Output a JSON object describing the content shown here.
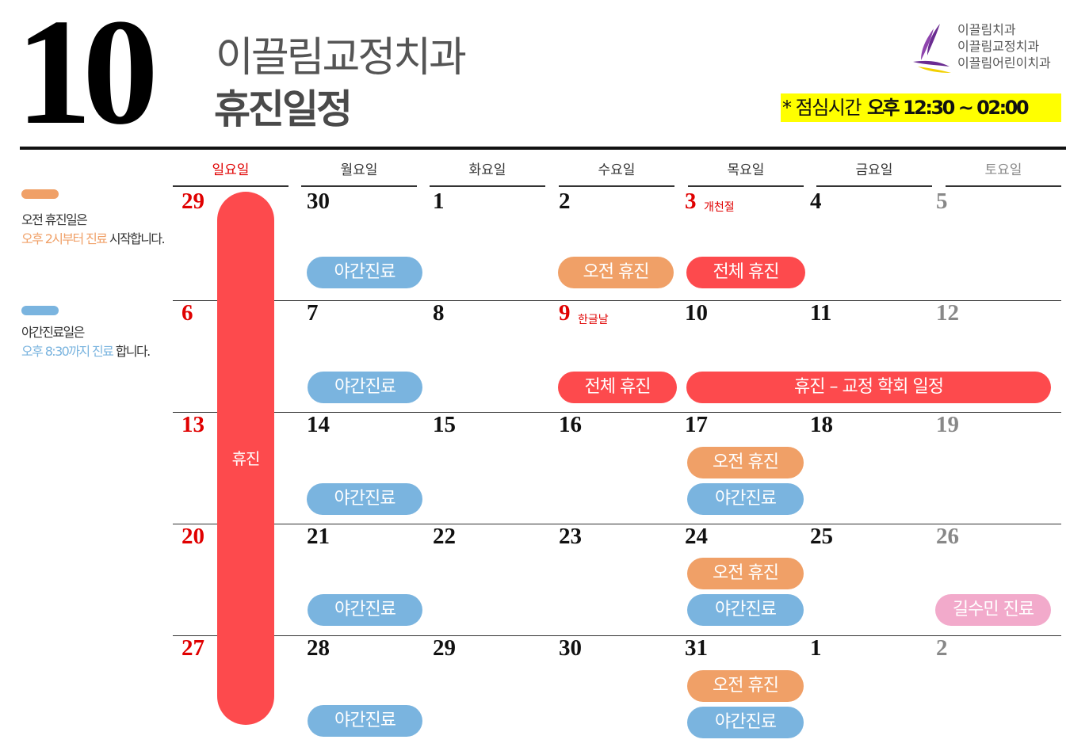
{
  "header": {
    "month": "10",
    "clinic_name": "이끌림교정치과",
    "schedule_title": "휴진일정",
    "logo_names": [
      "이끌림치과",
      "이끌림교정치과",
      "이끌림어린이치과"
    ],
    "lunch_prefix": "* 점심시간",
    "lunch_time": "오후 12:30 ~ 02:00"
  },
  "weekdays": [
    "일요일",
    "월요일",
    "화요일",
    "수요일",
    "목요일",
    "금요일",
    "토요일"
  ],
  "legend": {
    "morning_off": {
      "line1": "오전 휴진일은",
      "highlight": "오후 2시부터 진료",
      "rest": " 시작합니다."
    },
    "night_clinic": {
      "line1": "야간진료일은",
      "highlight": "오후 8:30까지 진료",
      "rest": " 합니다."
    }
  },
  "calendar": {
    "dates": [
      [
        "29",
        "30",
        "1",
        "2",
        "3",
        "4",
        "5"
      ],
      [
        "6",
        "7",
        "8",
        "9",
        "10",
        "11",
        "12"
      ],
      [
        "13",
        "14",
        "15",
        "16",
        "17",
        "18",
        "19"
      ],
      [
        "20",
        "21",
        "22",
        "23",
        "24",
        "25",
        "26"
      ],
      [
        "27",
        "28",
        "29",
        "30",
        "31",
        "1",
        "2"
      ]
    ],
    "holidays": {
      "chuseok_label": "개천절",
      "hangul_label": "한글날"
    },
    "sunday_bar_label": "휴진",
    "events": {
      "night_clinic": "야간진료",
      "morning_off": "오전 휴진",
      "full_off": "전체 휴진",
      "academy_off": "휴진 – 교정 학회 일정",
      "gil_clinic": "길수민 진료"
    }
  },
  "colors": {
    "blue": "#7ab4df",
    "orange": "#f0a067",
    "red": "#fd4a4d",
    "pink": "#f2aacb",
    "highlight_yellow": "#ffff00",
    "sunday_red": "#e00000"
  }
}
